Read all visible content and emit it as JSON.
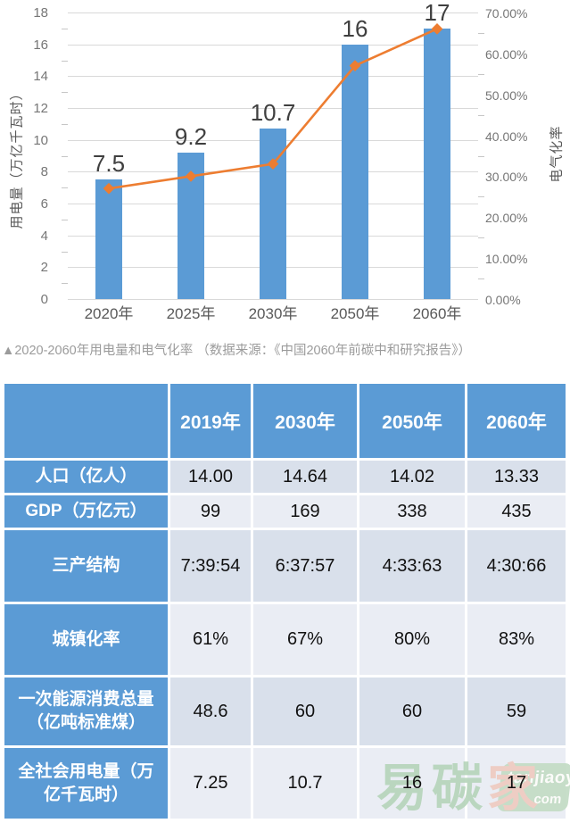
{
  "figure": {
    "caption": "▲2020-2060年用电量和电气化率 （数据来源：《中国2060年前碳中和研究报告》）"
  },
  "chart_data": {
    "type": "combo-bar-line",
    "categories": [
      "2020年",
      "2025年",
      "2030年",
      "2050年",
      "2060年"
    ],
    "series": [
      {
        "name": "用电量",
        "type": "bar",
        "axis": "left",
        "color": "#5B9BD5",
        "values": [
          7.5,
          9.2,
          10.7,
          16,
          17
        ],
        "labels": [
          "7.5",
          "9.2",
          "10.7",
          "16",
          "17"
        ]
      },
      {
        "name": "电气化率",
        "type": "line",
        "axis": "right",
        "color": "#ED7D31",
        "values_percent": [
          27,
          30,
          33,
          57,
          66
        ]
      }
    ],
    "left_axis": {
      "title": "用电量（万亿千瓦时）",
      "min": 0,
      "max": 18,
      "step": 2,
      "ticks": [
        "0",
        "2",
        "4",
        "6",
        "8",
        "10",
        "12",
        "14",
        "16",
        "18"
      ]
    },
    "right_axis": {
      "title": "电气化率",
      "min": 0,
      "max": 70,
      "step": 10,
      "ticks": [
        "0.00%",
        "10.00%",
        "20.00%",
        "30.00%",
        "40.00%",
        "50.00%",
        "60.00%",
        "70.00%"
      ]
    },
    "grid": true,
    "legend": "none"
  },
  "table": {
    "columns": [
      "",
      "2019年",
      "2030年",
      "2050年",
      "2060年"
    ],
    "rows": [
      {
        "label": "人口（亿人）",
        "values": [
          "14.00",
          "14.64",
          "14.02",
          "13.33"
        ]
      },
      {
        "label": "GDP（万亿元）",
        "values": [
          "99",
          "169",
          "338",
          "435"
        ]
      },
      {
        "label": "三产结构",
        "values": [
          "7:39:54",
          "6:37:57",
          "4:33:63",
          "4:30:66"
        ]
      },
      {
        "label": "城镇化率",
        "values": [
          "61%",
          "67%",
          "80%",
          "83%"
        ]
      },
      {
        "label": "一次能源消费总量（亿吨标准煤）",
        "values": [
          "48.6",
          "60",
          "60",
          "59"
        ]
      },
      {
        "label": "全社会用电量（万亿千瓦时）",
        "values": [
          "7.25",
          "10.7",
          "16",
          "17"
        ]
      }
    ],
    "colors": {
      "header_bg": "#5B9BD5",
      "row_dark": "#D9E0EB",
      "row_light": "#EAEDF4",
      "header_text": "#ffffff",
      "cell_text": "#111111"
    }
  },
  "watermark": {
    "char1": "易",
    "char2": "碳",
    "char3": "家",
    "badge_line1": "tanjiaoyi",
    "badge_line2": ".com",
    "green": "#b7d5bb",
    "pink": "#efcbc0",
    "badge_bg": "#c3dcc5"
  }
}
